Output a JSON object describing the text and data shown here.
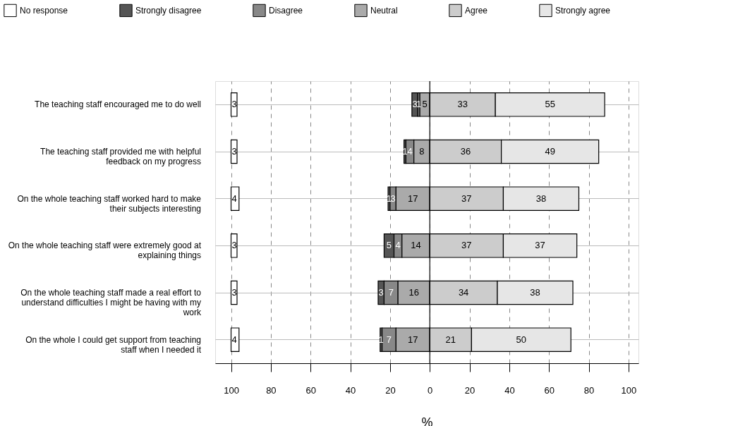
{
  "chart_data": {
    "type": "bar",
    "orientation": "horizontal",
    "xlabel": "%",
    "categories": [
      "The teaching staff encouraged me to do well",
      "The teaching staff provided me with helpful feedback on my progress",
      "On the whole teaching staff worked hard to make their subjects interesting",
      "On the whole teaching staff were extremely good at explaining things",
      "On the whole teaching staff made a real effort to understand difficulties I might be having with my work",
      "On the whole I could get support from teaching staff when I needed it"
    ],
    "series": [
      {
        "name": "No response",
        "color": "#ffffff",
        "base": [
          -100,
          -100,
          -100,
          -100,
          -100,
          -100
        ],
        "values": [
          3,
          3,
          4,
          3,
          3,
          4
        ]
      },
      {
        "name": "Strongly disagree",
        "color": "#555555",
        "base": [
          -9,
          -13,
          -21,
          -23,
          -26,
          -25
        ],
        "values": [
          3,
          1,
          1,
          5,
          3,
          1
        ]
      },
      {
        "name": "Disagree",
        "color": "#888888",
        "base": [
          -6,
          -12,
          -20,
          -18,
          -23,
          -24
        ],
        "values": [
          1,
          4,
          3,
          4,
          7,
          7
        ]
      },
      {
        "name": "Neutral",
        "color": "#aaaaaa",
        "base": [
          -5,
          -8,
          -17,
          -14,
          -16,
          -17
        ],
        "values": [
          5,
          8,
          17,
          14,
          16,
          17
        ]
      },
      {
        "name": "Agree",
        "color": "#cccccc",
        "base": [
          0,
          0,
          0,
          0,
          0,
          0
        ],
        "values": [
          33,
          36,
          37,
          37,
          34,
          21
        ]
      },
      {
        "name": "Strongly agree",
        "color": "#e6e6e6",
        "base": [
          33,
          36,
          37,
          37,
          34,
          21
        ],
        "values": [
          55,
          49,
          38,
          37,
          38,
          50
        ]
      }
    ],
    "data_labels": true,
    "xlim": [
      -108,
      105
    ],
    "xticks": [
      {
        "value": -100,
        "label": "100"
      },
      {
        "value": -80,
        "label": "80"
      },
      {
        "value": -60,
        "label": "60"
      },
      {
        "value": -40,
        "label": "40"
      },
      {
        "value": -20,
        "label": "20"
      },
      0,
      20,
      40,
      60,
      80,
      100
    ],
    "ref_lines": [
      {
        "axis": "x",
        "value": 0,
        "color": "#000000"
      }
    ],
    "grid": true,
    "legend": "top"
  }
}
